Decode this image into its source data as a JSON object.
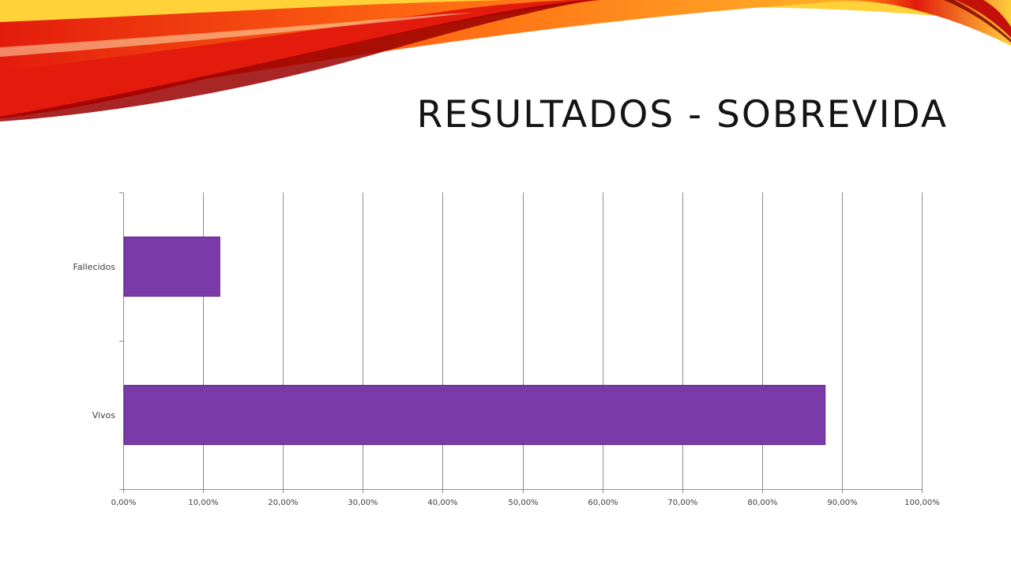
{
  "slide": {
    "title": "RESULTADOS - SOBREVIDA"
  },
  "colors": {
    "bar_fill": "#7a3aa8",
    "bar_edge": "#5c2485",
    "grid": "#8c8c8c",
    "swoosh_red": "#e31b0c",
    "swoosh_orange": "#ff8a1a",
    "swoosh_yellow": "#ffd23a",
    "swoosh_dark": "#9a0000"
  },
  "chart_data": {
    "type": "bar",
    "orientation": "horizontal",
    "categories": [
      "Fallecidos",
      "Vivos"
    ],
    "values": [
      12.1,
      87.9
    ],
    "unit": "%",
    "xlim": [
      0,
      100
    ],
    "x_tick_values": [
      0,
      10,
      20,
      30,
      40,
      50,
      60,
      70,
      80,
      90,
      100
    ],
    "x_tick_labels": [
      "0,00%",
      "10,00%",
      "20,00%",
      "30,00%",
      "40,00%",
      "50,00%",
      "60,00%",
      "70,00%",
      "80,00%",
      "90,00%",
      "100,00%"
    ],
    "grid": true,
    "legend": "none"
  }
}
